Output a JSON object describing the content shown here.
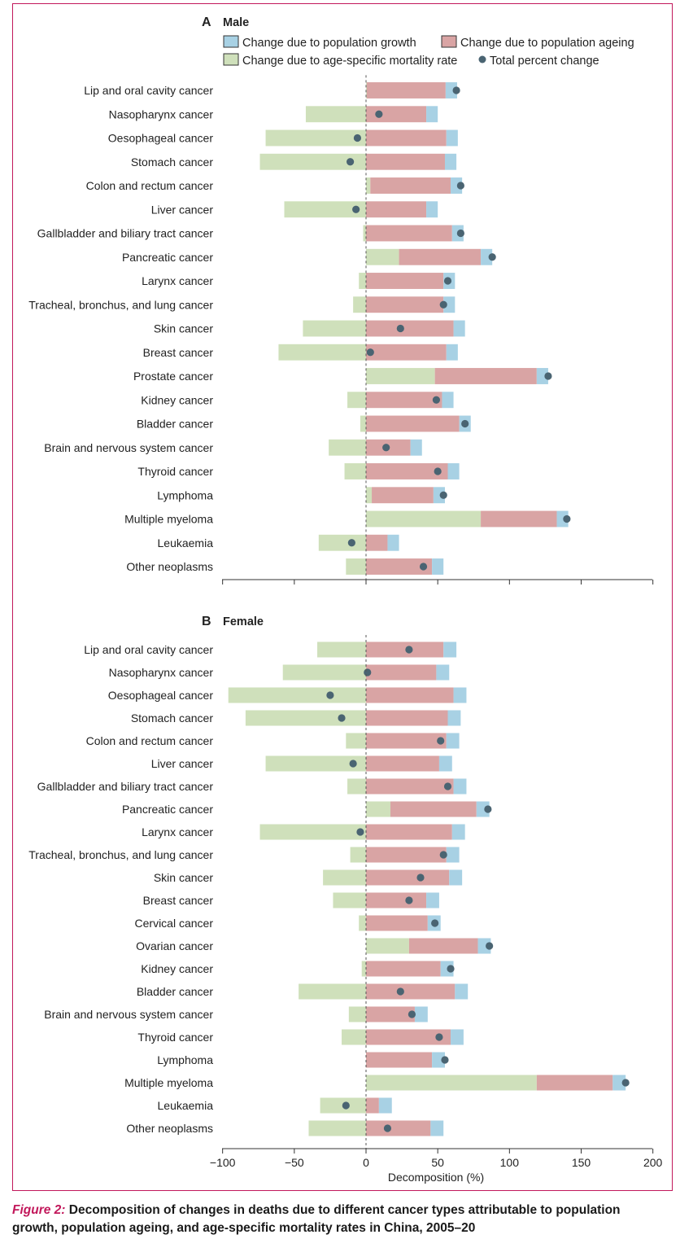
{
  "colors": {
    "population_growth": "#a8d1e4",
    "population_ageing": "#d9a4a4",
    "mortality_rate": "#cfe0bb",
    "total_marker": "#4a6472",
    "frame": "#c2185b"
  },
  "legend": {
    "population_growth": "Change due to population growth",
    "population_ageing": "Change due to population ageing",
    "mortality_rate": "Change due to age-specific mortality rate",
    "total": "Total percent change"
  },
  "chart_data": [
    {
      "type": "bar",
      "subtype": "diverging-stacked-horizontal",
      "panel_letter": "A",
      "title": "Male",
      "xlim": [
        -100,
        200
      ],
      "xticks": [
        "−100",
        "−50",
        "0",
        "50",
        "100",
        "150",
        "200"
      ],
      "xtick_values": [
        -100,
        -50,
        0,
        50,
        100,
        150,
        200
      ],
      "xlabel": "",
      "show_tick_labels": false,
      "categories": [
        "Lip and oral cavity cancer",
        "Nasopharynx cancer",
        "Oesophageal cancer",
        "Stomach cancer",
        "Colon and rectum cancer",
        "Liver cancer",
        "Gallbladder and biliary tract cancer",
        "Pancreatic cancer",
        "Larynx cancer",
        "Tracheal, bronchus, and lung cancer",
        "Skin cancer",
        "Breast cancer",
        "Prostate cancer",
        "Kidney cancer",
        "Bladder cancer",
        "Brain and nervous system cancer",
        "Thyroid cancer",
        "Lymphoma",
        "Multiple myeloma",
        "Leukaemia",
        "Other neoplasms"
      ],
      "series": [
        {
          "name": "Change due to age-specific mortality rate",
          "key": "mortality",
          "values": [
            0.5,
            -42,
            -70,
            -74,
            3,
            -57,
            -2,
            23,
            -5,
            -9,
            -44,
            -61,
            48,
            -13,
            -4,
            -26,
            -15,
            4,
            80,
            -33,
            -14
          ]
        },
        {
          "name": "Change due to population ageing",
          "key": "ageing",
          "values": [
            55,
            42,
            56,
            55,
            56,
            42,
            60,
            57,
            54,
            54,
            61,
            56,
            71,
            53,
            65,
            31,
            57,
            43,
            53,
            15,
            46
          ]
        },
        {
          "name": "Change due to population growth",
          "key": "growth",
          "values": [
            8,
            8,
            8,
            8,
            8,
            8,
            8,
            8,
            8,
            8,
            8,
            8,
            8,
            8,
            8,
            8,
            8,
            8,
            8,
            8,
            8
          ]
        },
        {
          "name": "Total percent change",
          "key": "total",
          "values": [
            63,
            9,
            -6,
            -11,
            66,
            -7,
            66,
            88,
            57,
            54,
            24,
            3,
            127,
            49,
            69,
            14,
            50,
            54,
            140,
            -10,
            40
          ]
        }
      ]
    },
    {
      "type": "bar",
      "subtype": "diverging-stacked-horizontal",
      "panel_letter": "B",
      "title": "Female",
      "xlim": [
        -100,
        200
      ],
      "xticks": [
        "−100",
        "−50",
        "0",
        "50",
        "100",
        "150",
        "200"
      ],
      "xtick_values": [
        -100,
        -50,
        0,
        50,
        100,
        150,
        200
      ],
      "xlabel": "Decomposition (%)",
      "show_tick_labels": true,
      "categories": [
        "Lip and oral cavity cancer",
        "Nasopharynx cancer",
        "Oesophageal cancer",
        "Stomach cancer",
        "Colon and rectum cancer",
        "Liver cancer",
        "Gallbladder and biliary tract cancer",
        "Pancreatic cancer",
        "Larynx cancer",
        "Tracheal, bronchus, and lung cancer",
        "Skin cancer",
        "Breast cancer",
        "Cervical cancer",
        "Ovarian cancer",
        "Kidney cancer",
        "Bladder cancer",
        "Brain and nervous system cancer",
        "Thyroid cancer",
        "Lymphoma",
        "Multiple myeloma",
        "Leukaemia",
        "Other neoplasms"
      ],
      "series": [
        {
          "name": "Change due to age-specific mortality rate",
          "key": "mortality",
          "values": [
            -34,
            -58,
            -96,
            -84,
            -14,
            -70,
            -13,
            17,
            -74,
            -11,
            -30,
            -23,
            -5,
            30,
            -3,
            -47,
            -12,
            -17,
            0,
            119,
            -32,
            -40
          ]
        },
        {
          "name": "Change due to population ageing",
          "key": "ageing",
          "values": [
            54,
            49,
            61,
            57,
            56,
            51,
            61,
            60,
            60,
            56,
            58,
            42,
            43,
            48,
            52,
            62,
            34,
            59,
            46,
            53,
            9,
            45
          ]
        },
        {
          "name": "Change due to population growth",
          "key": "growth",
          "values": [
            9,
            9,
            9,
            9,
            9,
            9,
            9,
            9,
            9,
            9,
            9,
            9,
            9,
            9,
            9,
            9,
            9,
            9,
            9,
            9,
            9,
            9
          ]
        },
        {
          "name": "Total percent change",
          "key": "total",
          "values": [
            30,
            1,
            -25,
            -17,
            52,
            -9,
            57,
            85,
            -4,
            54,
            38,
            30,
            48,
            86,
            59,
            24,
            32,
            51,
            55,
            181,
            -14,
            15
          ]
        }
      ]
    }
  ],
  "caption": {
    "figure_label": "Figure 2:",
    "text": "Decomposition of changes in deaths due to different cancer types attributable to population growth, population ageing, and age-specific mortality rates in China, 2005–20"
  }
}
